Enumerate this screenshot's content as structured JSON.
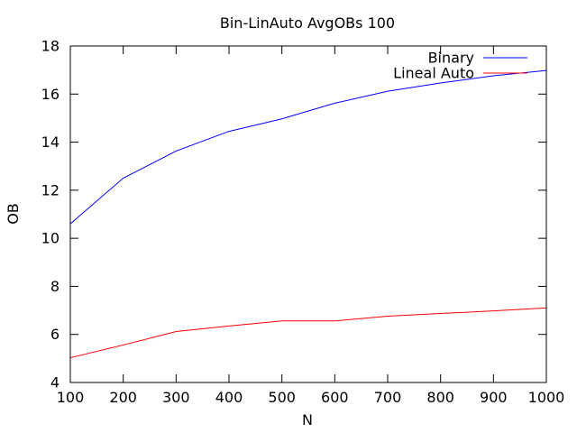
{
  "chart_data": {
    "type": "line",
    "title": "Bin-LinAuto AvgOBs 100",
    "xlabel": "N",
    "ylabel": "OB",
    "xlim": [
      100,
      1000
    ],
    "ylim": [
      4,
      18
    ],
    "xticks": [
      100,
      200,
      300,
      400,
      500,
      600,
      700,
      800,
      900,
      1000
    ],
    "yticks": [
      4,
      6,
      8,
      10,
      12,
      14,
      16,
      18
    ],
    "legend_position": "top-right",
    "grid": false,
    "x": [
      100,
      200,
      300,
      400,
      500,
      600,
      700,
      800,
      900,
      1000
    ],
    "series": [
      {
        "name": "Binary",
        "color": "#0000ff",
        "values": [
          10.6,
          12.5,
          13.63,
          14.45,
          14.97,
          15.62,
          16.12,
          16.46,
          16.76,
          16.98
        ]
      },
      {
        "name": "Lineal Auto",
        "color": "#ff0000",
        "values": [
          5.03,
          5.56,
          6.12,
          6.35,
          6.56,
          6.56,
          6.76,
          6.87,
          6.98,
          7.1
        ]
      }
    ]
  }
}
